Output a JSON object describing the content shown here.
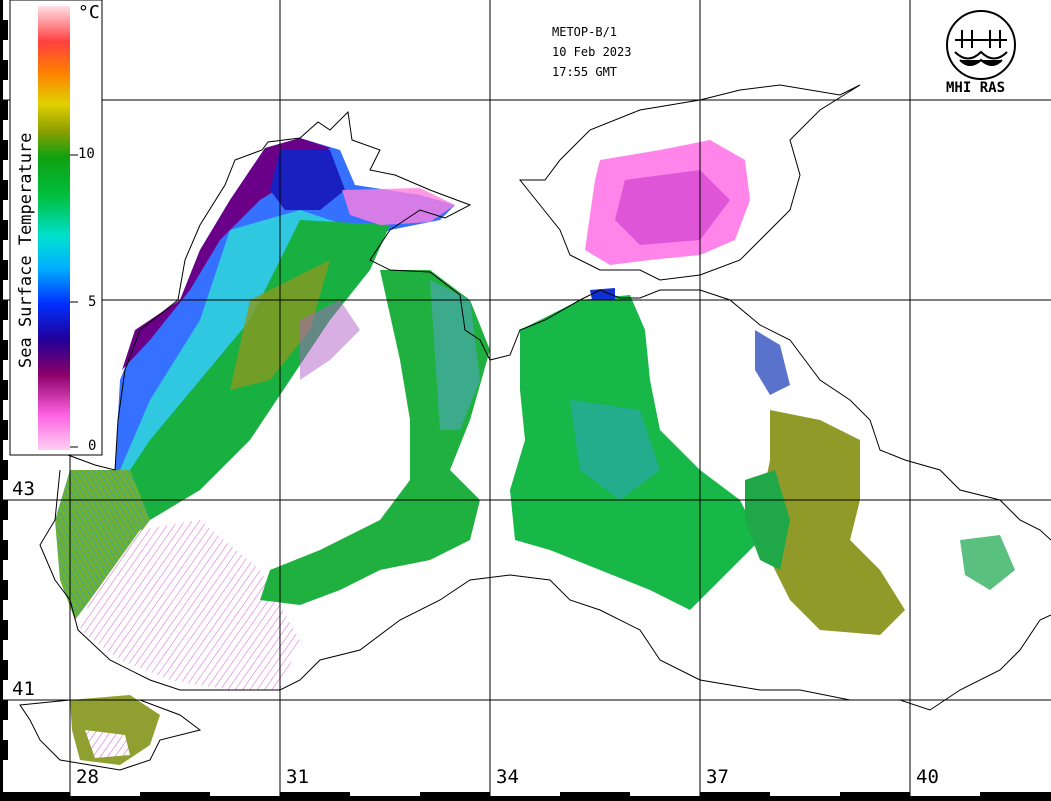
{
  "header": {
    "satellite": "METOP-B/1",
    "date": "10 Feb 2023",
    "time": "17:55 GMT"
  },
  "logo": {
    "text": "MHI RAS"
  },
  "legend": {
    "title": "Sea Surface Temperature",
    "unit": "°C",
    "ticks": [
      "10",
      "5",
      "0"
    ]
  },
  "grid": {
    "lon_labels": [
      "28",
      "31",
      "34",
      "37",
      "40"
    ],
    "lat_labels": [
      "43",
      "41"
    ]
  },
  "colors": {
    "land_outline": "#000000",
    "grid": "#000000",
    "background": "#ffffff"
  }
}
